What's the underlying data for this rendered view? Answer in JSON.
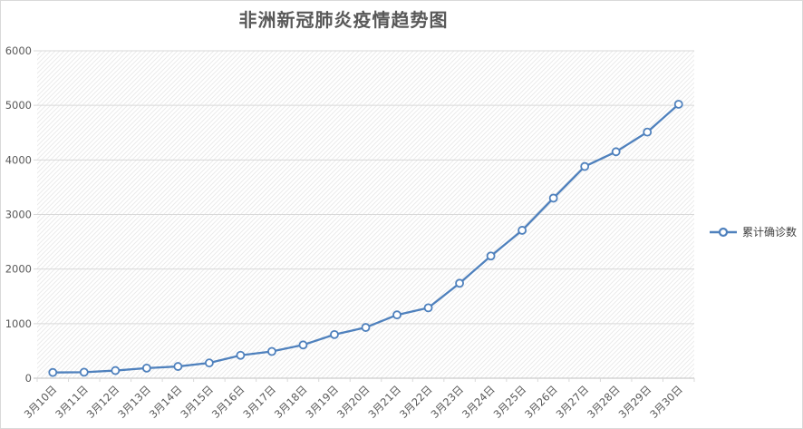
{
  "chart_data": {
    "type": "line",
    "title": "非洲新冠肺炎疫情趋势图",
    "categories": [
      "3月10日",
      "3月11日",
      "3月12日",
      "3月13日",
      "3月14日",
      "3月15日",
      "3月16日",
      "3月17日",
      "3月18日",
      "3月19日",
      "3月20日",
      "3月21日",
      "3月22日",
      "3月23日",
      "3月24日",
      "3月25日",
      "3月26日",
      "3月27日",
      "3月28日",
      "3月29日",
      "3月30日"
    ],
    "series": [
      {
        "name": "累计确诊数",
        "values": [
          105,
          110,
          140,
          185,
          215,
          280,
          420,
          490,
          610,
          800,
          930,
          1160,
          1290,
          1740,
          2240,
          2710,
          3300,
          3880,
          4150,
          4510,
          5020
        ]
      }
    ],
    "xlabel": "",
    "ylabel": "",
    "ylim": [
      0,
      6000
    ],
    "ytick_step": 1000,
    "grid": true,
    "legend_position": "right",
    "marker": "circle"
  },
  "colors": {
    "series_line": "#4F81BD",
    "marker_fill": "#ffffff",
    "gridline": "#d9d9d9",
    "axis_line": "#bfbfbf",
    "hatch_line": "#ebebeb",
    "axis_text": "#595959",
    "title_text": "#595959",
    "legend_text": "#404040"
  }
}
